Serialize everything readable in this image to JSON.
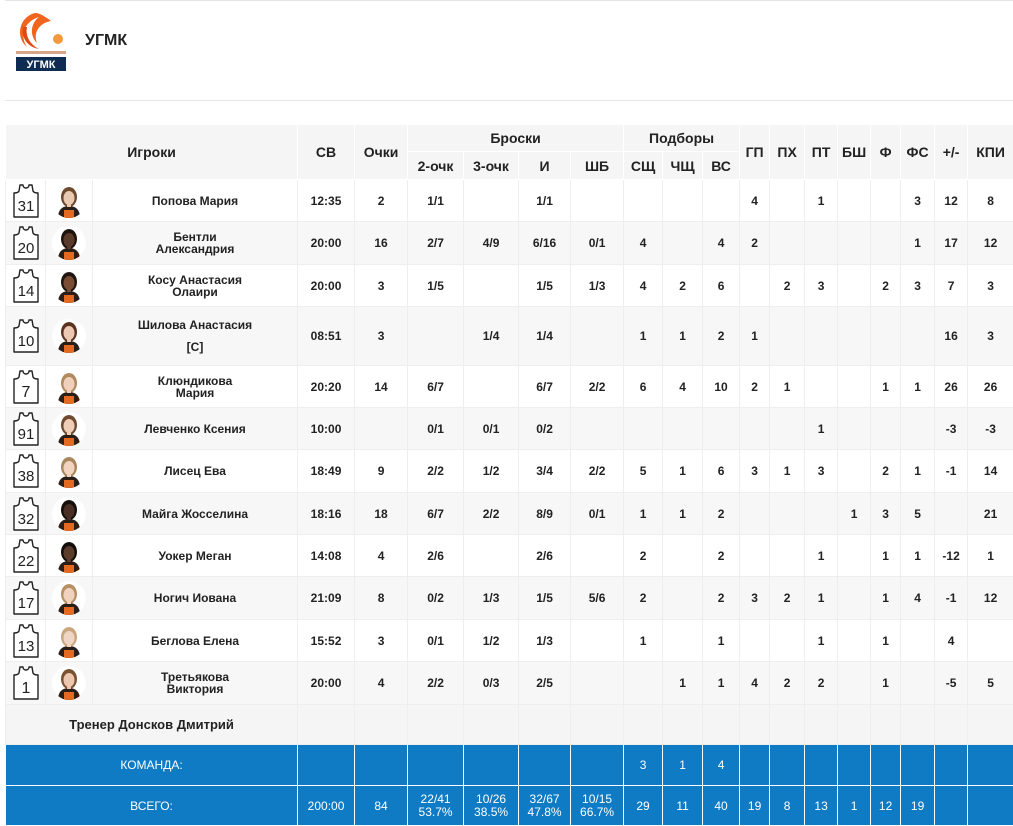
{
  "team": {
    "name": "УГМК",
    "logo_icon": "ugmk-basketball-club-logo"
  },
  "headers": {
    "players": "Игроки",
    "minutes": "СВ",
    "points": "Очки",
    "shots": "Броски",
    "two": "2-очк",
    "three": "3-очк",
    "fg": "И",
    "ft": "ШБ",
    "rebounds": "Подборы",
    "dreb": "СЩ",
    "oreb": "ЧЩ",
    "treb": "ВС",
    "ast": "ГП",
    "tov": "ПХ",
    "stl": "ПТ",
    "blk": "БШ",
    "pf": "Ф",
    "pfd": "ФС",
    "pm": "+/-",
    "eff": "КПИ"
  },
  "players": [
    {
      "number": "31",
      "name": [
        "Попова Мария"
      ],
      "min": "12:35",
      "pts": "2",
      "two": "1/1",
      "three": "",
      "fg": "1/1",
      "ft": "",
      "dreb": "",
      "oreb": "",
      "treb": "",
      "ast": "4",
      "tov": "",
      "stl": "1",
      "blk": "",
      "pf": "",
      "pfd": "3",
      "pm": "12",
      "eff": "8",
      "skin": "#e9c9b0",
      "hair": "#6b4a2e"
    },
    {
      "number": "20",
      "name": [
        "Бентли",
        "Александрия"
      ],
      "min": "20:00",
      "pts": "16",
      "two": "2/7",
      "three": "4/9",
      "fg": "6/16",
      "ft": "0/1",
      "dreb": "4",
      "oreb": "",
      "treb": "4",
      "ast": "2",
      "tov": "",
      "stl": "",
      "blk": "",
      "pf": "",
      "pfd": "1",
      "pm": "17",
      "eff": "12",
      "skin": "#5a3a28",
      "hair": "#1d1410"
    },
    {
      "number": "14",
      "name": [
        "Косу Анастасия",
        "Олаири"
      ],
      "min": "20:00",
      "pts": "3",
      "two": "1/5",
      "three": "",
      "fg": "1/5",
      "ft": "1/3",
      "dreb": "4",
      "oreb": "2",
      "treb": "6",
      "ast": "",
      "tov": "2",
      "stl": "3",
      "blk": "",
      "pf": "2",
      "pfd": "3",
      "pm": "7",
      "eff": "3",
      "skin": "#7a4e35",
      "hair": "#1f1612"
    },
    {
      "number": "10",
      "name": [
        "Шилова Анастасия",
        "[C]"
      ],
      "min": "08:51",
      "pts": "3",
      "two": "",
      "three": "1/4",
      "fg": "1/4",
      "ft": "",
      "dreb": "1",
      "oreb": "1",
      "treb": "2",
      "ast": "1",
      "tov": "",
      "stl": "",
      "blk": "",
      "pf": "",
      "pfd": "",
      "pm": "16",
      "eff": "3",
      "skin": "#ecc8b3",
      "hair": "#5a3420"
    },
    {
      "number": "7",
      "name": [
        "Клюндикова",
        "Мария"
      ],
      "min": "20:20",
      "pts": "14",
      "two": "6/7",
      "three": "",
      "fg": "6/7",
      "ft": "2/2",
      "dreb": "6",
      "oreb": "4",
      "treb": "10",
      "ast": "2",
      "tov": "1",
      "stl": "",
      "blk": "",
      "pf": "1",
      "pfd": "1",
      "pm": "26",
      "eff": "26",
      "skin": "#f0d0bb",
      "hair": "#b08a60"
    },
    {
      "number": "91",
      "name": [
        "Левченко Ксения"
      ],
      "min": "10:00",
      "pts": "",
      "two": "0/1",
      "three": "0/1",
      "fg": "0/2",
      "ft": "",
      "dreb": "",
      "oreb": "",
      "treb": "",
      "ast": "",
      "tov": "",
      "stl": "1",
      "blk": "",
      "pf": "",
      "pfd": "",
      "pm": "-3",
      "eff": "-3",
      "skin": "#efcdb6",
      "hair": "#6e4a30"
    },
    {
      "number": "38",
      "name": [
        "Лисец Ева"
      ],
      "min": "18:49",
      "pts": "9",
      "two": "2/2",
      "three": "1/2",
      "fg": "3/4",
      "ft": "2/2",
      "dreb": "5",
      "oreb": "1",
      "treb": "6",
      "ast": "3",
      "tov": "1",
      "stl": "3",
      "blk": "",
      "pf": "2",
      "pfd": "1",
      "pm": "-1",
      "eff": "14",
      "skin": "#f1d3c0",
      "hair": "#a8875e"
    },
    {
      "number": "32",
      "name": [
        "Майга Жосселина"
      ],
      "min": "18:16",
      "pts": "18",
      "two": "6/7",
      "three": "2/2",
      "fg": "8/9",
      "ft": "0/1",
      "dreb": "1",
      "oreb": "1",
      "treb": "2",
      "ast": "",
      "tov": "",
      "stl": "",
      "blk": "1",
      "pf": "3",
      "pfd": "5",
      "pm": "",
      "eff": "21",
      "skin": "#4a3024",
      "hair": "#15100c"
    },
    {
      "number": "22",
      "name": [
        "Уокер Меган"
      ],
      "min": "14:08",
      "pts": "4",
      "two": "2/6",
      "three": "",
      "fg": "2/6",
      "ft": "",
      "dreb": "2",
      "oreb": "",
      "treb": "2",
      "ast": "",
      "tov": "",
      "stl": "1",
      "blk": "",
      "pf": "1",
      "pfd": "1",
      "pm": "-12",
      "eff": "1",
      "skin": "#5b3b2a",
      "hair": "#140e0a"
    },
    {
      "number": "17",
      "name": [
        "Ногич Иована"
      ],
      "min": "21:09",
      "pts": "8",
      "two": "0/2",
      "three": "1/3",
      "fg": "1/5",
      "ft": "5/6",
      "dreb": "2",
      "oreb": "",
      "treb": "2",
      "ast": "3",
      "tov": "2",
      "stl": "1",
      "blk": "",
      "pf": "1",
      "pfd": "4",
      "pm": "-1",
      "eff": "12",
      "skin": "#f0d2bf",
      "hair": "#b89066"
    },
    {
      "number": "13",
      "name": [
        "Беглова Елена"
      ],
      "min": "15:52",
      "pts": "3",
      "two": "0/1",
      "three": "1/2",
      "fg": "1/3",
      "ft": "",
      "dreb": "1",
      "oreb": "",
      "treb": "1",
      "ast": "",
      "tov": "",
      "stl": "1",
      "blk": "",
      "pf": "1",
      "pfd": "",
      "pm": "4",
      "eff": "",
      "skin": "#f1d5c4",
      "hair": "#c9a77e"
    },
    {
      "number": "1",
      "name": [
        "Третьякова",
        "Виктория"
      ],
      "min": "20:00",
      "pts": "4",
      "two": "2/2",
      "three": "0/3",
      "fg": "2/5",
      "ft": "",
      "dreb": "",
      "oreb": "1",
      "treb": "1",
      "ast": "4",
      "tov": "2",
      "stl": "2",
      "blk": "",
      "pf": "1",
      "pfd": "",
      "pm": "-5",
      "eff": "5",
      "skin": "#ecc7ae",
      "hair": "#7a5032"
    }
  ],
  "coach": "Тренер Донсков Дмитрий",
  "team_row": {
    "label": "КОМАНДА:",
    "dreb": "3",
    "oreb": "1",
    "treb": "4"
  },
  "total_row": {
    "label": "ВСЕГО:",
    "min": "200:00",
    "pts": "84",
    "two": "22/41",
    "two_pct": "53.7%",
    "three": "10/26",
    "three_pct": "38.5%",
    "fg": "32/67",
    "fg_pct": "47.8%",
    "ft": "10/15",
    "ft_pct": "66.7%",
    "dreb": "29",
    "oreb": "11",
    "treb": "40",
    "ast": "19",
    "tov": "8",
    "stl": "13",
    "blk": "1",
    "pf": "12",
    "pfd": "19",
    "pm": "",
    "eff": ""
  },
  "colors": {
    "total_bg": "#0e7bc4",
    "logo_orange": "#f0641e",
    "logo_navy": "#0f2d52"
  }
}
